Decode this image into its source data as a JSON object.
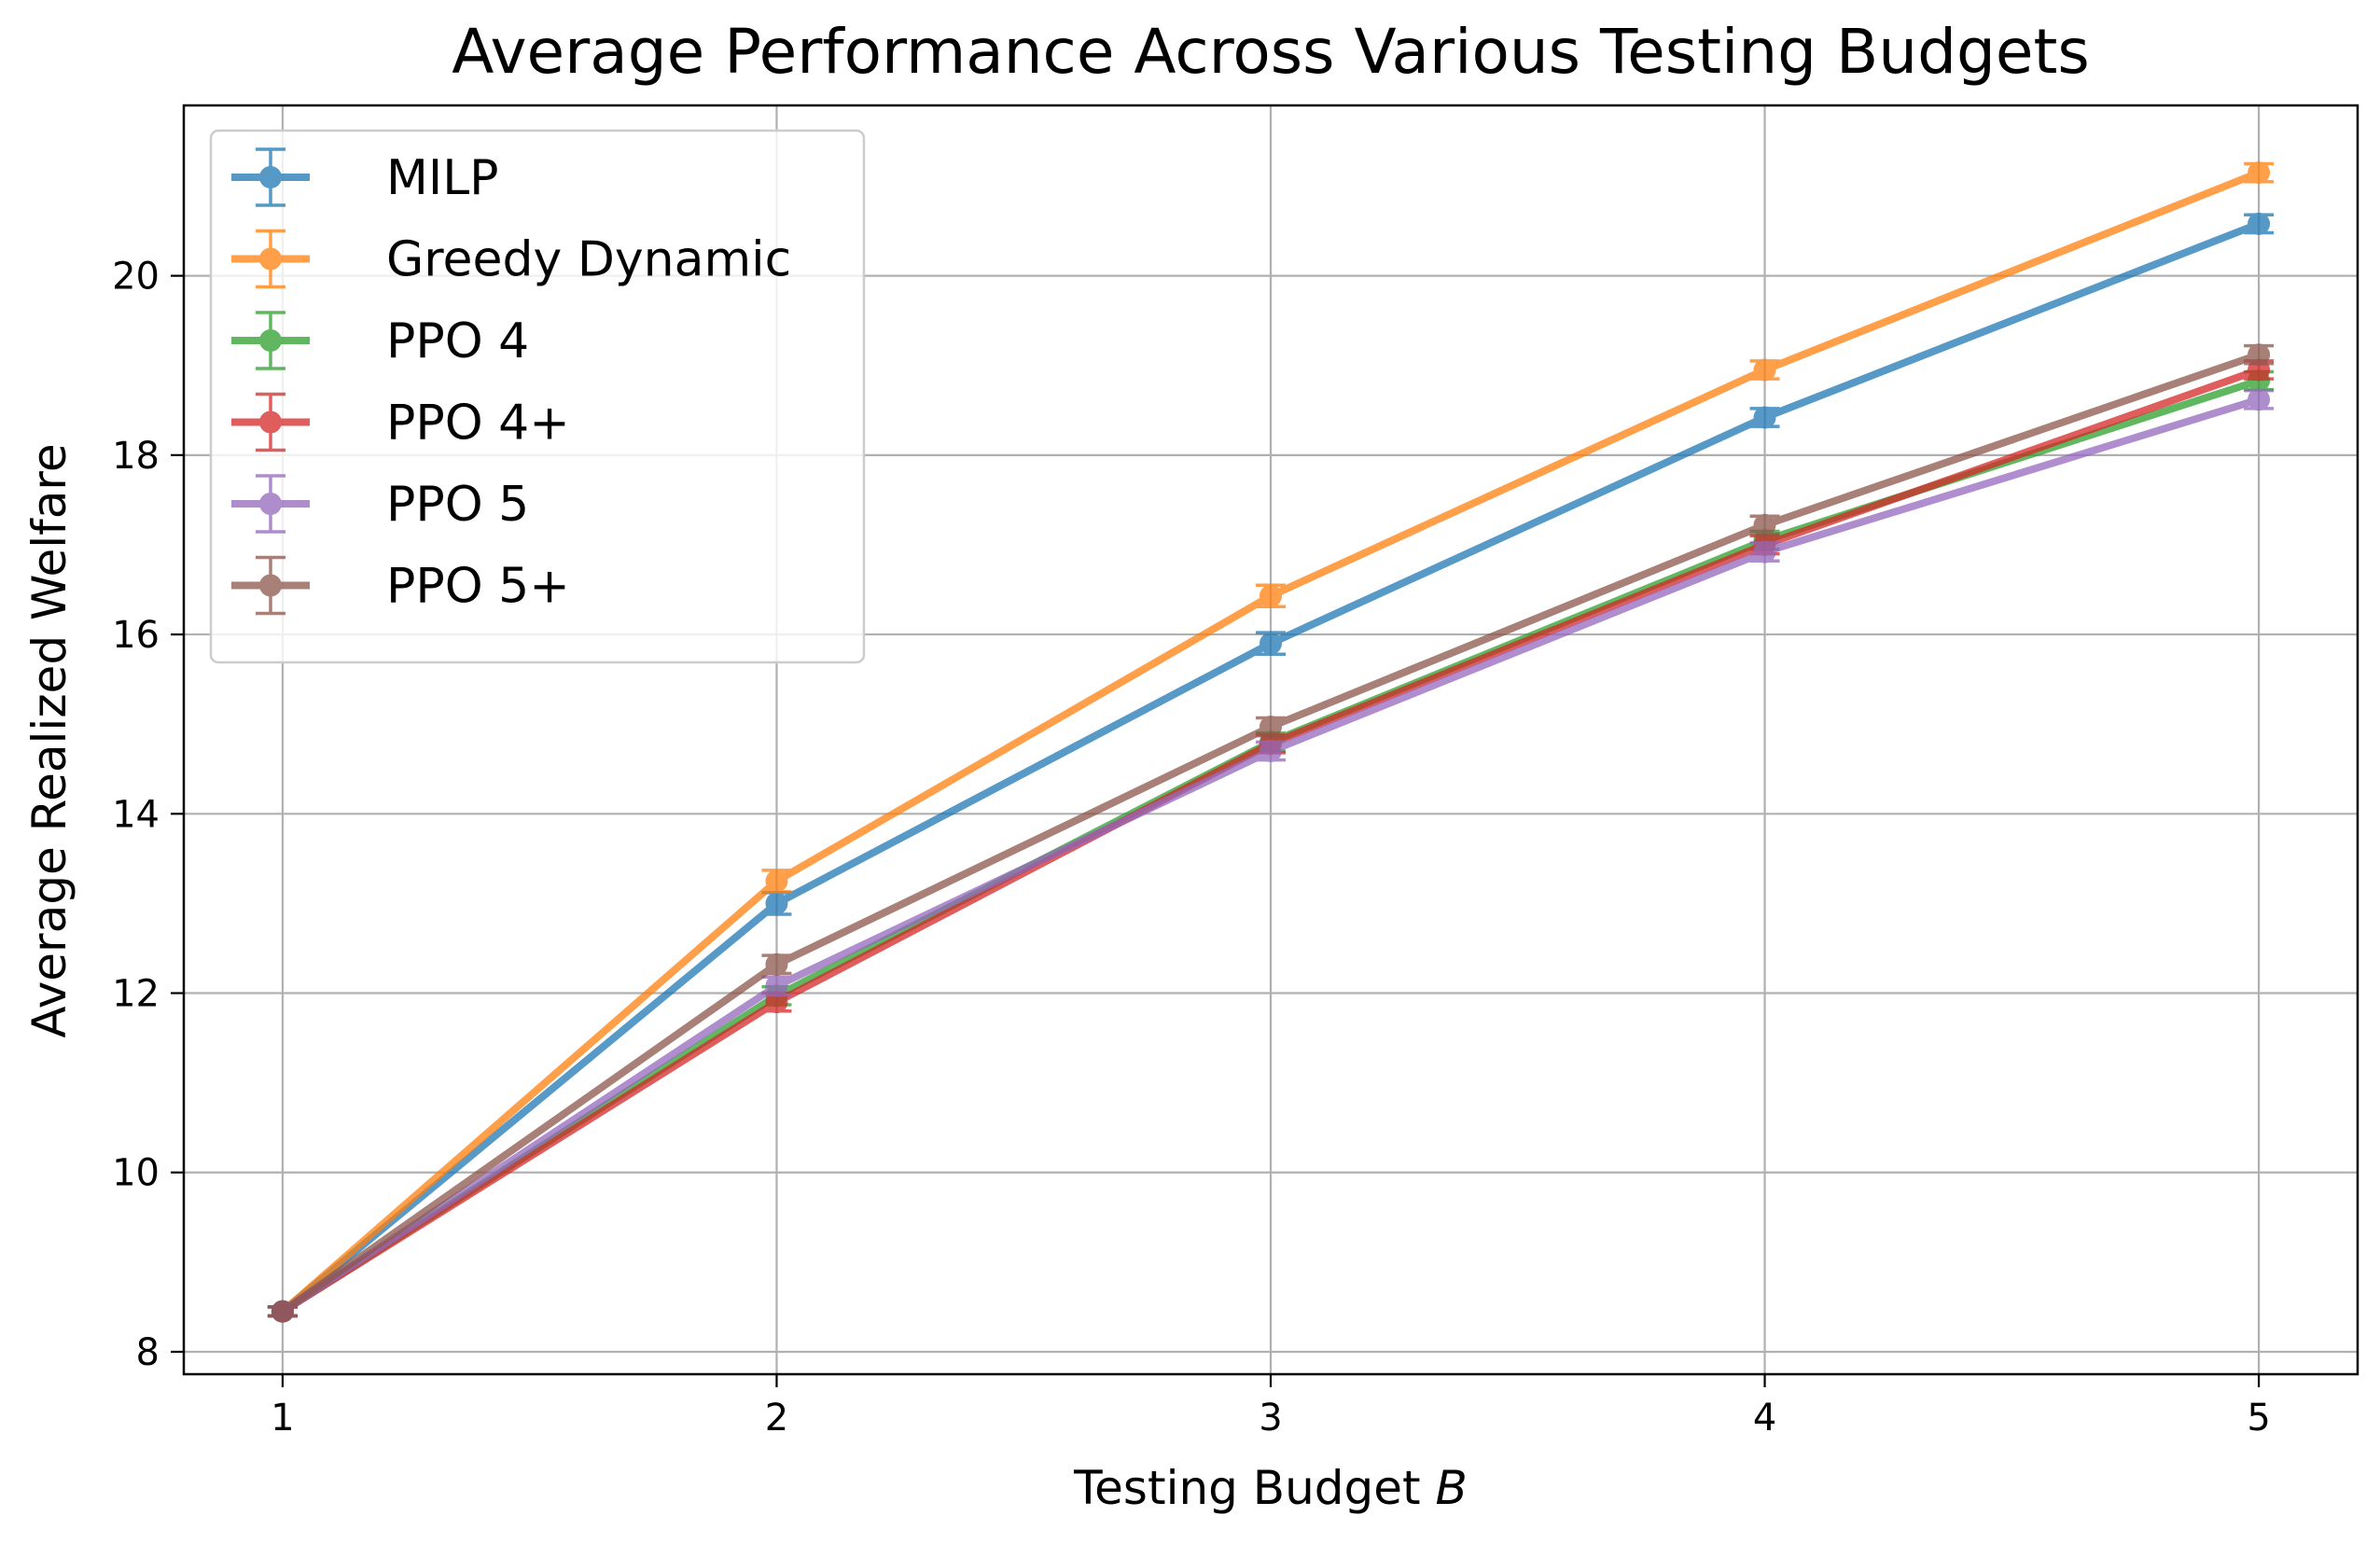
{
  "chart_data": {
    "type": "line",
    "title": "Average Performance Across Various Testing Budgets",
    "xlabel": "Testing Budget",
    "xlabel_var": "B",
    "ylabel": "Average Realized Welfare",
    "x": [
      1,
      2,
      3,
      4,
      5
    ],
    "xticks": [
      "1",
      "2",
      "3",
      "4",
      "5"
    ],
    "yticks": [
      "8",
      "10",
      "12",
      "14",
      "16",
      "18",
      "20"
    ],
    "xlim": [
      0.8,
      5.2
    ],
    "ylim": [
      7.75,
      21.9
    ],
    "grid": true,
    "legend_position": "top-left",
    "error_bars": true,
    "series": [
      {
        "name": "MILP",
        "color": "#1f77b4",
        "values": [
          8.45,
          13.0,
          15.9,
          18.42,
          20.58
        ],
        "err": [
          0.05,
          0.12,
          0.12,
          0.1,
          0.1
        ]
      },
      {
        "name": "Greedy Dynamic",
        "color": "#ff7f0e",
        "values": [
          8.45,
          13.25,
          16.43,
          18.95,
          21.15
        ],
        "err": [
          0.05,
          0.12,
          0.12,
          0.1,
          0.1
        ]
      },
      {
        "name": "PPO 4",
        "color": "#2ca02c",
        "values": [
          8.45,
          11.97,
          14.8,
          17.05,
          18.83
        ],
        "err": [
          0.05,
          0.1,
          0.1,
          0.1,
          0.1
        ]
      },
      {
        "name": "PPO 4+",
        "color": "#d62728",
        "values": [
          8.45,
          11.9,
          14.78,
          17.0,
          18.95
        ],
        "err": [
          0.05,
          0.1,
          0.1,
          0.1,
          0.1
        ]
      },
      {
        "name": "PPO 5",
        "color": "#9467bd",
        "values": [
          8.45,
          12.08,
          14.7,
          16.92,
          18.62
        ],
        "err": [
          0.05,
          0.1,
          0.1,
          0.1,
          0.1
        ]
      },
      {
        "name": "PPO 5+",
        "color": "#8c564b",
        "values": [
          8.45,
          12.32,
          14.97,
          17.22,
          19.12
        ],
        "err": [
          0.05,
          0.1,
          0.1,
          0.1,
          0.1
        ]
      }
    ]
  }
}
